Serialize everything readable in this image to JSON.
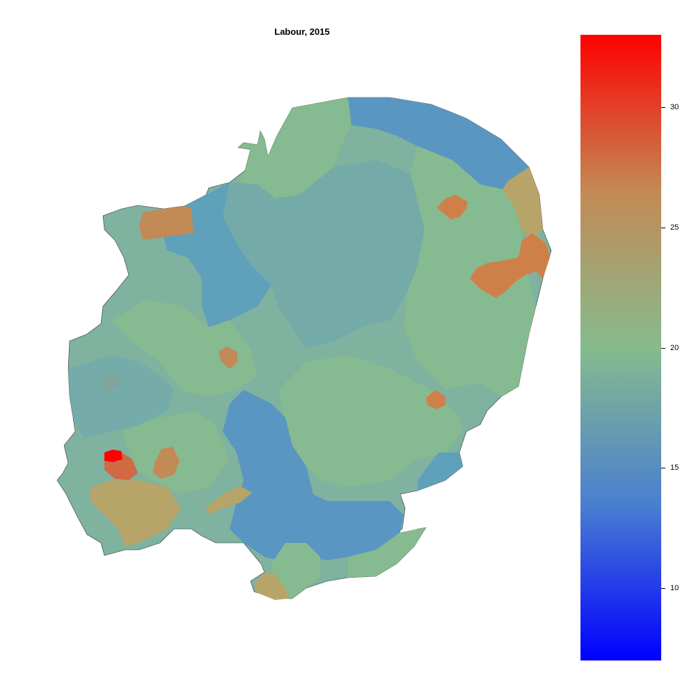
{
  "title": "Labour, 2015",
  "legend": {
    "min": 7,
    "max": 33,
    "ticks": [
      {
        "value": 10,
        "label": "10"
      },
      {
        "value": 15,
        "label": "15"
      },
      {
        "value": 20,
        "label": "20"
      },
      {
        "value": 25,
        "label": "25"
      },
      {
        "value": 30,
        "label": "30"
      }
    ],
    "colors": [
      "#0000ff",
      "#4a7fd0",
      "#86bb8e",
      "#c28a55",
      "#ff0000"
    ]
  },
  "regions_colors": {
    "base": "#7fb29f",
    "green": "#86ba91",
    "teal": "#74aaa8",
    "blue": "#5a96c2",
    "orange": "#cf8049",
    "tan": "#b7a468",
    "red": "#ff0000"
  }
}
